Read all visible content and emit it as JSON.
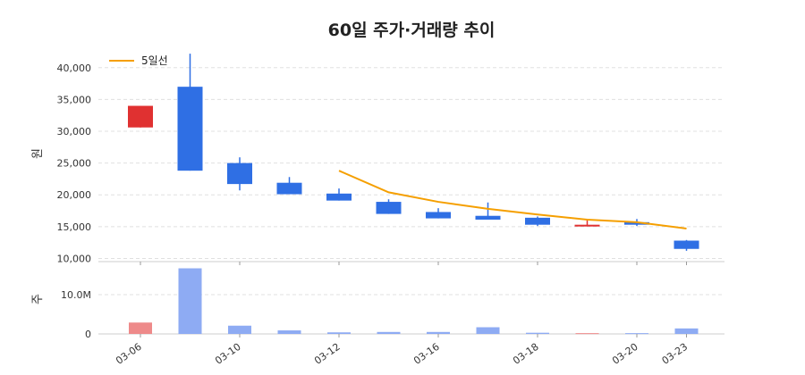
{
  "chart_data": {
    "type": "candlestick",
    "title": "60일 주가·거래량 추이",
    "price_panel": {
      "ylabel": "원",
      "ylim": [
        9500,
        42500
      ],
      "yticks": [
        10000,
        15000,
        20000,
        25000,
        30000,
        35000,
        40000
      ],
      "ytick_labels": [
        "10,000",
        "15,000",
        "20,000",
        "25,000",
        "30,000",
        "35,000",
        "40,000"
      ],
      "grid": true,
      "legend": {
        "label": "5일선",
        "placement": "top-left"
      },
      "candles": [
        {
          "open": 30600,
          "close": 34000,
          "high": 34000,
          "low": 30600
        },
        {
          "open": 37000,
          "close": 23800,
          "high": 42200,
          "low": 23800
        },
        {
          "open": 25000,
          "close": 21700,
          "high": 25900,
          "low": 20700
        },
        {
          "open": 21900,
          "close": 20100,
          "high": 22800,
          "low": 20100
        },
        {
          "open": 20200,
          "close": 19100,
          "high": 21000,
          "low": 19100
        },
        {
          "open": 18900,
          "close": 17000,
          "high": 19300,
          "low": 17000
        },
        {
          "open": 17300,
          "close": 16300,
          "high": 17900,
          "low": 16300
        },
        {
          "open": 16700,
          "close": 16100,
          "high": 18800,
          "low": 16100
        },
        {
          "open": 16400,
          "close": 15300,
          "high": 16600,
          "low": 15100
        },
        {
          "open": 15200,
          "close": 15300,
          "high": 16200,
          "low": 15100
        },
        {
          "open": 15700,
          "close": 15300,
          "high": 16200,
          "low": 15100
        },
        {
          "open": 12800,
          "close": 11500,
          "high": 12900,
          "low": 11200
        }
      ],
      "ma5": [
        null,
        null,
        null,
        null,
        23800,
        20400,
        18900,
        17800,
        16900,
        16100,
        15700,
        14700
      ]
    },
    "volume_panel": {
      "ylabel": "주",
      "ylim": [
        0,
        17500000
      ],
      "yticks": [
        0,
        10000000
      ],
      "ytick_labels": [
        "0",
        "10.0M"
      ],
      "grid": true,
      "values": [
        2900000,
        16700000,
        2100000,
        900000,
        400000,
        500000,
        500000,
        1700000,
        300000,
        200000,
        200000,
        1400000
      ]
    },
    "x_tick_labels": [
      {
        "index": 0,
        "label": "03-06"
      },
      {
        "index": 2,
        "label": "03-10"
      },
      {
        "index": 4,
        "label": "03-12"
      },
      {
        "index": 6,
        "label": "03-16"
      },
      {
        "index": 8,
        "label": "03-18"
      },
      {
        "index": 10,
        "label": "03-20"
      },
      {
        "index": 11,
        "label": "03-23"
      }
    ],
    "colors": {
      "up": "#e03131",
      "down": "#2f6fe4",
      "up_volume": "#ee8a8a",
      "down_volume": "#8eabf3",
      "ma5": "#f59f00",
      "grid": "#e0e0e0",
      "axis": "#cccccc"
    }
  }
}
